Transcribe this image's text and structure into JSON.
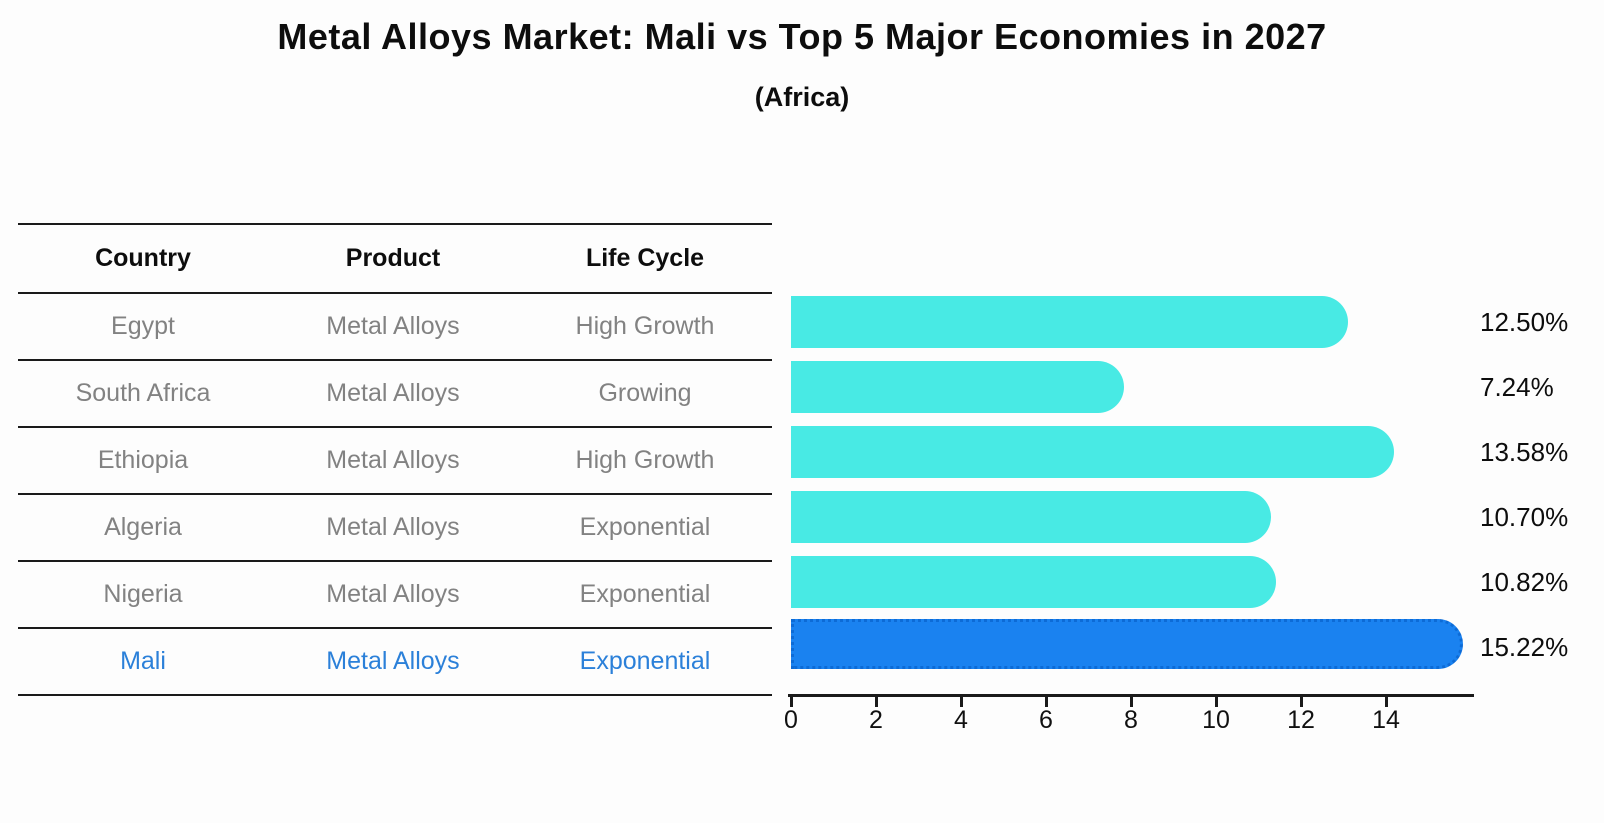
{
  "title": "Metal Alloys Market: Mali vs Top 5 Major Economies in 2027",
  "subtitle": "(Africa)",
  "table": {
    "headers": [
      "Country",
      "Product",
      "Life Cycle"
    ],
    "rows": [
      {
        "country": "Egypt",
        "product": "Metal Alloys",
        "life_cycle": "High Growth",
        "highlight": false
      },
      {
        "country": "South Africa",
        "product": "Metal Alloys",
        "life_cycle": "Growing",
        "highlight": false
      },
      {
        "country": "Ethiopia",
        "product": "Metal Alloys",
        "life_cycle": "High Growth",
        "highlight": false
      },
      {
        "country": "Algeria",
        "product": "Metal Alloys",
        "life_cycle": "Exponential",
        "highlight": false
      },
      {
        "country": "Nigeria",
        "product": "Metal Alloys",
        "life_cycle": "Exponential",
        "highlight": false
      },
      {
        "country": "Mali",
        "product": "Metal Alloys",
        "life_cycle": "Exponential",
        "highlight": true
      }
    ]
  },
  "chart_data": {
    "type": "bar",
    "orientation": "horizontal",
    "title": "Metal Alloys Market: Mali vs Top 5 Major Economies in 2027",
    "subtitle": "(Africa)",
    "categories": [
      "Egypt",
      "South Africa",
      "Ethiopia",
      "Algeria",
      "Nigeria",
      "Mali"
    ],
    "values": [
      12.5,
      7.24,
      13.58,
      10.7,
      10.82,
      15.22
    ],
    "value_labels": [
      "12.50%",
      "7.24%",
      "13.58%",
      "10.70%",
      "10.82%",
      "15.22%"
    ],
    "xlim": [
      0,
      16
    ],
    "x_ticks": [
      "0",
      "2",
      "4",
      "6",
      "8",
      "10",
      "12",
      "14"
    ],
    "x_tick_values": [
      0,
      2,
      4,
      6,
      8,
      10,
      12,
      14
    ],
    "grid": false,
    "legend": false,
    "bar_color": "#48eae4",
    "highlight_color": "#1a82f0",
    "highlight_index": 5,
    "highlight_text_color": "#2b80d9"
  }
}
